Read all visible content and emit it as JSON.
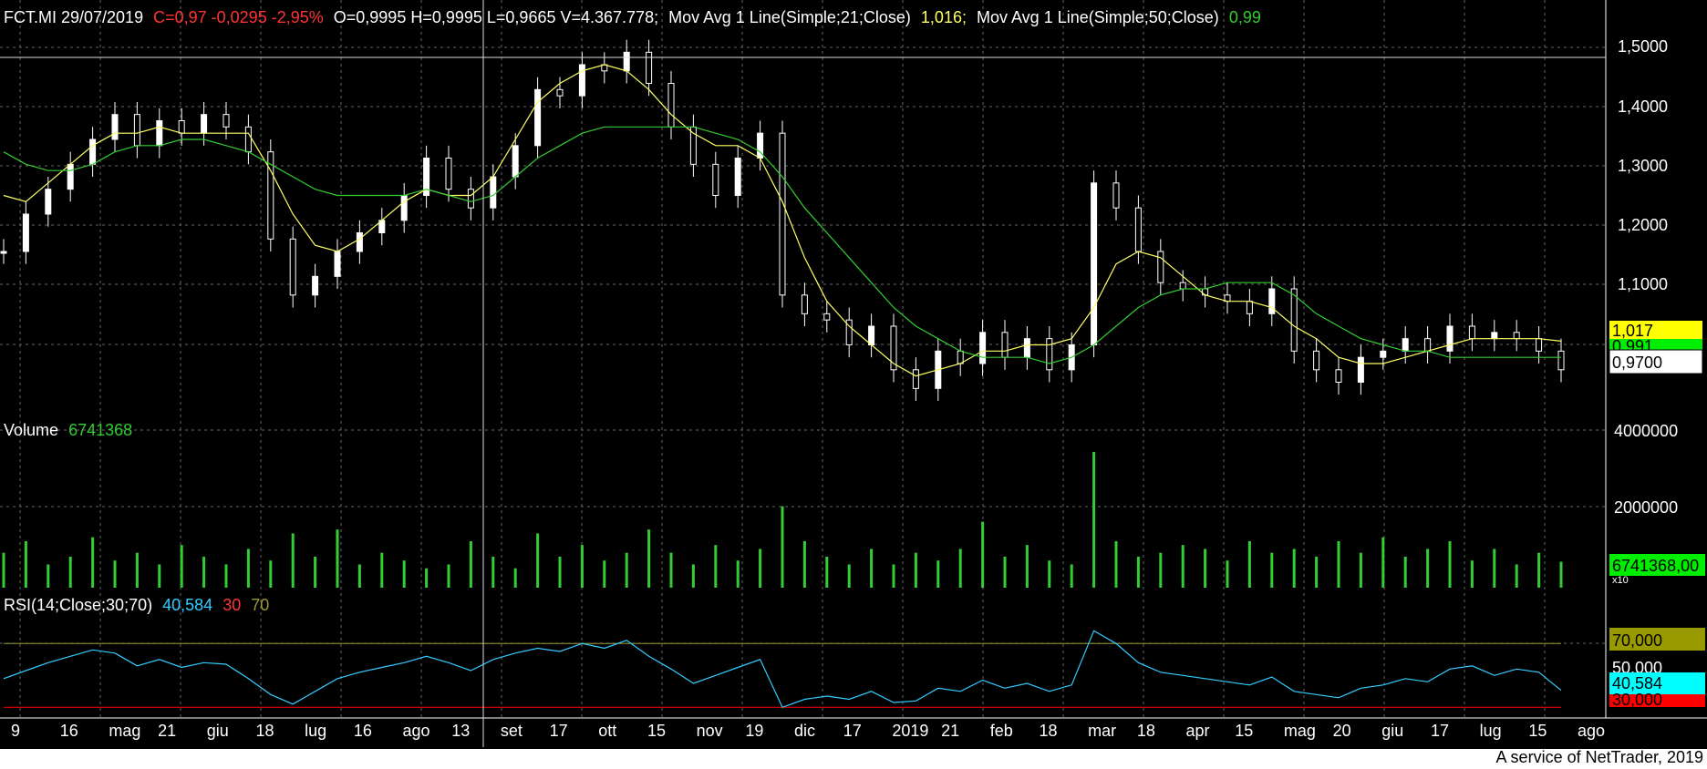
{
  "header": {
    "symbol_date": "FCT.MI 29/07/2019",
    "change": "C=0,97 -0,0295 -2,95%",
    "ohlcv": "O=0,9995 H=0,9995 L=0,9665 V=4.367.778;",
    "ma21_label": "Mov Avg 1 Line(Simple;21;Close)",
    "ma21_value": "1,016;",
    "ma50_label": "Mov Avg 1 Line(Simple;50;Close)",
    "ma50_value": "0,99"
  },
  "volume_panel": {
    "label": "Volume",
    "value": "6741368",
    "ticks": [
      "4000000",
      "2000000"
    ],
    "last_box": "6741368,00",
    "multiplier": "x10"
  },
  "rsi_panel": {
    "label": "RSI(14;Close;30;70)",
    "value": "40,584",
    "low": "30",
    "high": "70",
    "box_high": "70,000",
    "box_mid": "50,000",
    "box_value": "40,584",
    "box_low": "30,000"
  },
  "price_axis": {
    "ticks": [
      "1,5000",
      "1,4000",
      "1,3000",
      "1,2000",
      "1,1000"
    ],
    "box_ma21": "1,017",
    "box_ma50": "0,991",
    "box_close": "0,9700"
  },
  "time_axis": {
    "labels": [
      "9",
      "16",
      "mag",
      "21",
      "giu",
      "18",
      "lug",
      "16",
      "ago",
      "13",
      "set",
      "17",
      "ott",
      "15",
      "nov",
      "19",
      "dic",
      "17",
      "2019",
      "21",
      "feb",
      "18",
      "mar",
      "18",
      "apr",
      "15",
      "mag",
      "20",
      "giu",
      "17",
      "lug",
      "15",
      "ago"
    ]
  },
  "footer": {
    "credit": "A service of NetTrader, 2019"
  },
  "colors": {
    "background": "#000000",
    "candle": "#ffffff",
    "ma21": "#ffff66",
    "ma50": "#33cc33",
    "volume": "#33cc33",
    "rsi": "#33ccff",
    "rsi_low": "#ff0000",
    "rsi_high": "#999933",
    "change_text": "#ff3333",
    "grid": "#666666"
  },
  "chart_data": [
    {
      "type": "line",
      "title": "FCT.MI",
      "series": [
        {
          "name": "Close",
          "values": [
            1.16,
            1.22,
            1.26,
            1.3,
            1.34,
            1.38,
            1.33,
            1.37,
            1.35,
            1.38,
            1.36,
            1.32,
            1.18,
            1.09,
            1.12,
            1.16,
            1.19,
            1.21,
            1.25,
            1.31,
            1.26,
            1.23,
            1.28,
            1.33,
            1.42,
            1.41,
            1.46,
            1.45,
            1.48,
            1.43,
            1.36,
            1.3,
            1.25,
            1.31,
            1.35,
            1.09,
            1.06,
            1.05,
            1.01,
            1.04,
            0.97,
            0.94,
            1.0,
            0.98,
            1.03,
            0.99,
            1.02,
            0.97,
            1.01,
            1.27,
            1.23,
            1.16,
            1.11,
            1.1,
            1.09,
            1.08,
            1.06,
            1.1,
            1.0,
            0.97,
            0.95,
            0.99,
            1.0,
            1.02,
            1.0,
            1.04,
            1.02,
            1.03,
            1.02,
            1.0,
            0.97
          ]
        },
        {
          "name": "Mov Avg 1 Line(Simple;21;Close)",
          "values": [
            1.25,
            1.24,
            1.27,
            1.3,
            1.33,
            1.35,
            1.35,
            1.36,
            1.35,
            1.35,
            1.35,
            1.35,
            1.29,
            1.22,
            1.17,
            1.16,
            1.18,
            1.21,
            1.24,
            1.26,
            1.25,
            1.25,
            1.28,
            1.34,
            1.4,
            1.43,
            1.45,
            1.46,
            1.45,
            1.42,
            1.38,
            1.35,
            1.33,
            1.33,
            1.31,
            1.24,
            1.15,
            1.08,
            1.04,
            1.01,
            0.98,
            0.96,
            0.97,
            0.98,
            1.0,
            1.0,
            1.01,
            1.01,
            1.02,
            1.07,
            1.14,
            1.16,
            1.15,
            1.12,
            1.09,
            1.08,
            1.08,
            1.07,
            1.04,
            1.02,
            0.99,
            0.98,
            0.98,
            0.99,
            1.0,
            1.01,
            1.02,
            1.02,
            1.02,
            1.02,
            1.016
          ]
        },
        {
          "name": "Mov Avg 1 Line(Simple;50;Close)",
          "values": [
            1.32,
            1.3,
            1.29,
            1.29,
            1.3,
            1.32,
            1.33,
            1.33,
            1.34,
            1.34,
            1.33,
            1.32,
            1.3,
            1.28,
            1.26,
            1.25,
            1.25,
            1.25,
            1.25,
            1.26,
            1.25,
            1.24,
            1.25,
            1.28,
            1.31,
            1.33,
            1.35,
            1.36,
            1.36,
            1.36,
            1.36,
            1.36,
            1.35,
            1.34,
            1.32,
            1.28,
            1.23,
            1.19,
            1.15,
            1.11,
            1.07,
            1.04,
            1.02,
            1.0,
            0.99,
            0.99,
            0.99,
            0.98,
            0.99,
            1.01,
            1.04,
            1.07,
            1.09,
            1.1,
            1.1,
            1.11,
            1.11,
            1.11,
            1.09,
            1.06,
            1.04,
            1.02,
            1.01,
            1.0,
            1.0,
            0.99,
            0.99,
            0.99,
            0.99,
            0.99,
            0.99
          ]
        }
      ],
      "ylim": [
        0.92,
        1.52
      ]
    },
    {
      "type": "bar",
      "title": "Volume",
      "values": [
        900000,
        1200000,
        600000,
        800000,
        1300000,
        700000,
        900000,
        600000,
        1100000,
        800000,
        600000,
        1000000,
        700000,
        1400000,
        800000,
        1500000,
        600000,
        900000,
        700000,
        500000,
        600000,
        1200000,
        800000,
        500000,
        1400000,
        800000,
        1100000,
        700000,
        900000,
        1500000,
        900000,
        600000,
        1100000,
        700000,
        1000000,
        2100000,
        1200000,
        800000,
        600000,
        1000000,
        600000,
        900000,
        700000,
        1000000,
        1700000,
        800000,
        1100000,
        700000,
        600000,
        3500000,
        1200000,
        800000,
        900000,
        1100000,
        1000000,
        700000,
        1200000,
        900000,
        1000000,
        800000,
        1200000,
        900000,
        1300000,
        800000,
        1000000,
        1200000,
        700000,
        1000000,
        600000,
        900000,
        670000
      ],
      "ylim": [
        0,
        4300000
      ]
    },
    {
      "type": "line",
      "title": "RSI(14;Close;30;70)",
      "series": [
        {
          "name": "RSI",
          "values": [
            48,
            53,
            58,
            62,
            66,
            64,
            56,
            60,
            55,
            58,
            57,
            48,
            38,
            32,
            40,
            48,
            52,
            55,
            58,
            62,
            58,
            53,
            60,
            64,
            67,
            65,
            70,
            67,
            72,
            62,
            54,
            45,
            50,
            55,
            60,
            30,
            35,
            37,
            35,
            40,
            33,
            34,
            42,
            40,
            47,
            42,
            45,
            40,
            44,
            78,
            70,
            58,
            52,
            50,
            48,
            46,
            44,
            49,
            40,
            38,
            36,
            42,
            44,
            48,
            46,
            54,
            56,
            50,
            54,
            52,
            40.584
          ]
        }
      ],
      "ylim": [
        25,
        85
      ]
    }
  ]
}
